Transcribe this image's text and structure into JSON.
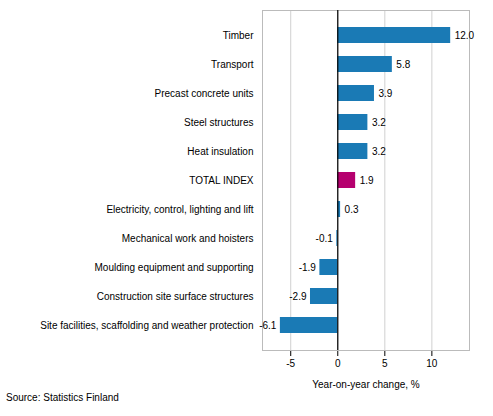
{
  "chart_data": {
    "type": "bar",
    "orientation": "horizontal",
    "categories": [
      "Site facilities, scaffolding and weather protection",
      "Construction site surface structures",
      "Moulding equipment and supporting",
      "Mechanical work and hoisters",
      "Electricity, control, lighting and lift",
      "TOTAL INDEX",
      "Heat insulation",
      "Steel structures",
      "Precast concrete units",
      "Transport",
      "Timber"
    ],
    "values": [
      -6.1,
      -2.9,
      -1.9,
      -0.1,
      0.3,
      1.9,
      3.2,
      3.2,
      3.9,
      5.8,
      12.0
    ],
    "value_labels": [
      "-6.1",
      "-2.9",
      "-1.9",
      "-0.1",
      "0.3",
      "1.9",
      "3.2",
      "3.2",
      "3.9",
      "5.8",
      "12.0"
    ],
    "colors": [
      "#1a7ab5",
      "#1a7ab5",
      "#1a7ab5",
      "#1a7ab5",
      "#1a7ab5",
      "#b5006e",
      "#1a7ab5",
      "#1a7ab5",
      "#1a7ab5",
      "#1a7ab5",
      "#1a7ab5"
    ],
    "xlabel": "Year-on-year change, %",
    "source": "Source: Statistics Finland",
    "xlim": [
      -8,
      14
    ],
    "xticks": [
      -5,
      0,
      5,
      10
    ],
    "grid": true,
    "data_labels": true
  }
}
